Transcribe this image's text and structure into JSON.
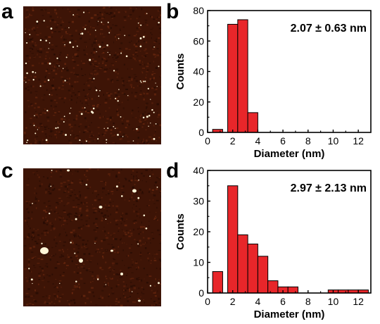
{
  "panels": {
    "a": {
      "letter": "a"
    },
    "b": {
      "letter": "b"
    },
    "c": {
      "letter": "c"
    },
    "d": {
      "letter": "d"
    }
  },
  "colors": {
    "afm_background": "#3d1406",
    "afm_dark": "#220a03",
    "afm_light": "#6e2a10",
    "particle": "#fff6d8",
    "bar_fill": "#e8262a",
    "bar_stroke": "#000000"
  },
  "chart_data": [
    {
      "id": "b",
      "type": "bar",
      "annotation": "2.07 ± 0.63 nm",
      "xlabel": "Diameter (nm)",
      "ylabel": "Counts",
      "xlim": [
        0,
        13
      ],
      "ylim": [
        0,
        80
      ],
      "xticks": [
        "0",
        "2",
        "4",
        "6",
        "8",
        "10",
        "12"
      ],
      "yticks": [
        "0",
        "20",
        "40",
        "60",
        "80"
      ],
      "bin_width": 0.8,
      "bins": [
        {
          "x": 0.4,
          "value": 2
        },
        {
          "x": 1.6,
          "value": 71
        },
        {
          "x": 2.4,
          "value": 74
        },
        {
          "x": 3.2,
          "value": 13
        }
      ],
      "grid": false,
      "legend": "none"
    },
    {
      "id": "d",
      "type": "bar",
      "annotation": "2.97 ± 2.13 nm",
      "xlabel": "Diameter (nm)",
      "ylabel": "Counts",
      "xlim": [
        0,
        13
      ],
      "ylim": [
        0,
        40
      ],
      "xticks": [
        "0",
        "2",
        "4",
        "6",
        "8",
        "10",
        "12"
      ],
      "yticks": [
        "0",
        "10",
        "20",
        "30",
        "40"
      ],
      "bin_width": 0.8,
      "bins": [
        {
          "x": 0.4,
          "value": 7
        },
        {
          "x": 1.6,
          "value": 35
        },
        {
          "x": 2.4,
          "value": 19
        },
        {
          "x": 3.2,
          "value": 16
        },
        {
          "x": 4.0,
          "value": 12
        },
        {
          "x": 4.8,
          "value": 4
        },
        {
          "x": 5.6,
          "value": 2
        },
        {
          "x": 6.4,
          "value": 2
        },
        {
          "x": 9.6,
          "value": 1
        },
        {
          "x": 10.4,
          "value": 1
        },
        {
          "x": 11.2,
          "value": 1
        },
        {
          "x": 12.0,
          "value": 1
        }
      ],
      "grid": false,
      "legend": "none"
    }
  ]
}
